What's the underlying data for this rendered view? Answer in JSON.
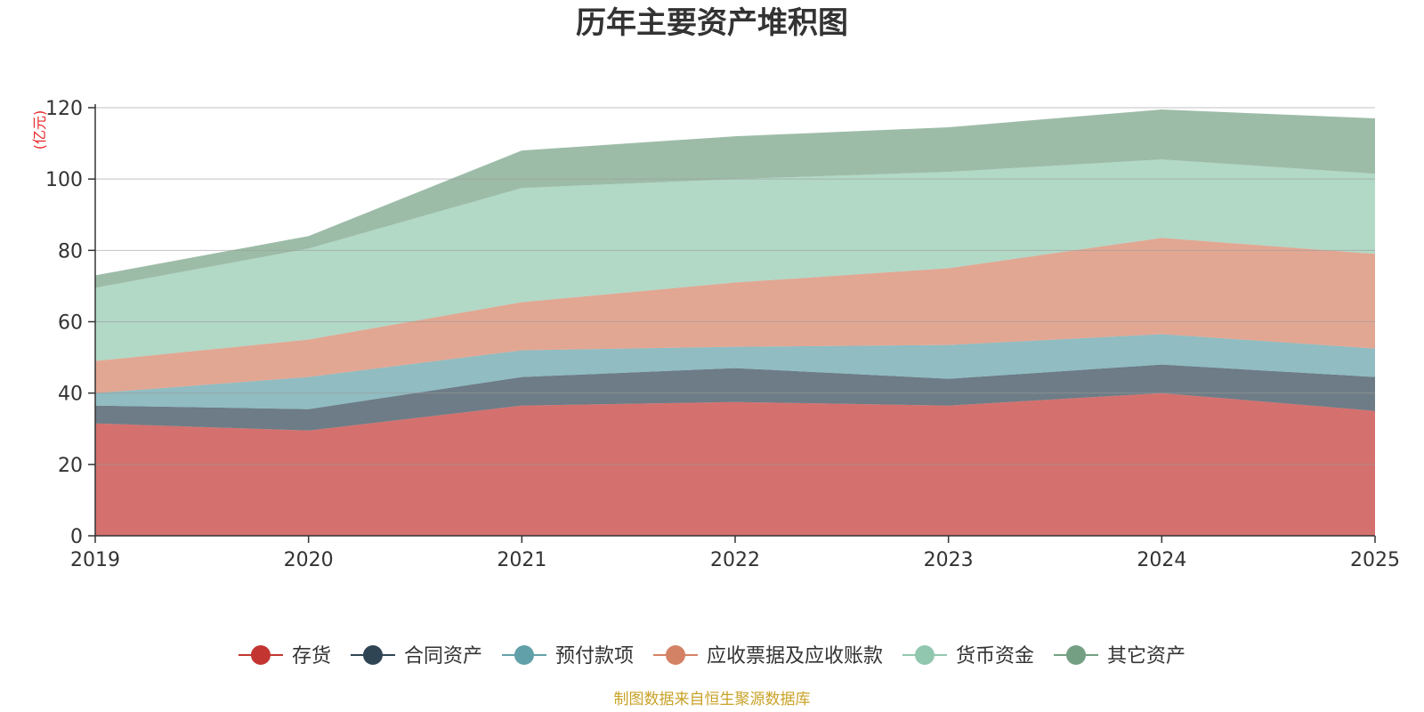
{
  "chart_data": {
    "type": "area",
    "stacked": true,
    "title": "历年主要资产堆积图",
    "ylabel": "(亿元)",
    "xlabel": "",
    "x": [
      "2019",
      "2020",
      "2021",
      "2022",
      "2023",
      "2024",
      "2025"
    ],
    "ylim": [
      0,
      120
    ],
    "yticks": [
      0,
      20,
      40,
      60,
      80,
      100,
      120
    ],
    "grid": true,
    "legend_position": "bottom",
    "series": [
      {
        "name": "存货",
        "color": "#c23531",
        "values": [
          31.5,
          29.5,
          36.5,
          37.5,
          36.5,
          40.0,
          35.0
        ]
      },
      {
        "name": "合同资产",
        "color": "#2f4554",
        "values": [
          5.0,
          6.0,
          8.0,
          9.5,
          7.5,
          8.0,
          9.5
        ]
      },
      {
        "name": "预付款项",
        "color": "#61a0a8",
        "values": [
          3.5,
          9.0,
          7.5,
          6.0,
          9.5,
          8.5,
          8.0
        ]
      },
      {
        "name": "应收票据及应收账款",
        "color": "#d48265",
        "values": [
          9.0,
          10.5,
          13.5,
          18.0,
          21.5,
          27.0,
          26.5
        ]
      },
      {
        "name": "货币资金",
        "color": "#91c7ae",
        "values": [
          20.5,
          25.5,
          32.0,
          29.0,
          27.0,
          22.0,
          22.5
        ]
      },
      {
        "name": "其它资产",
        "color": "#749f83",
        "values": [
          3.5,
          3.5,
          10.5,
          12.0,
          12.5,
          14.0,
          15.5
        ]
      }
    ]
  },
  "footer": {
    "source": "制图数据来自恒生聚源数据库"
  }
}
